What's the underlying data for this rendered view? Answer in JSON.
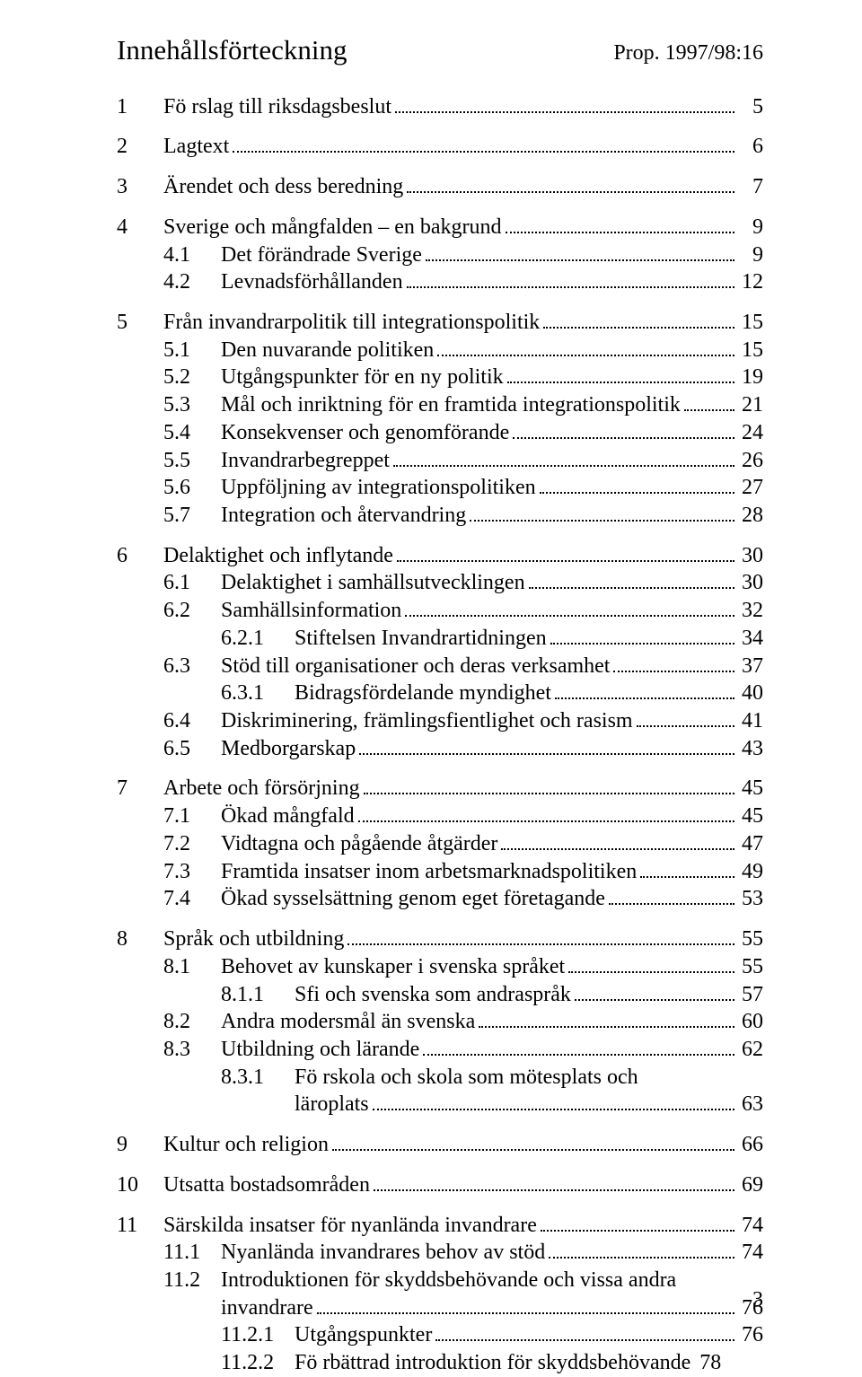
{
  "header": {
    "title": "Innehållsförteckning",
    "prop": "Prop. 1997/98:16"
  },
  "toc": [
    {
      "lvl": 0,
      "num": "1",
      "label": "Fö rslag till riksdagsbeslut",
      "page": "5",
      "gap": true
    },
    {
      "lvl": 0,
      "num": "2",
      "label": "Lagtext",
      "page": "6",
      "gap": true
    },
    {
      "lvl": 0,
      "num": "3",
      "label": "Ärendet och dess beredning",
      "page": "7",
      "gap": true
    },
    {
      "lvl": 0,
      "num": "4",
      "label": "Sverige och mångfalden – en bakgrund",
      "page": "9",
      "gap": true
    },
    {
      "lvl": 1,
      "num": "4.1",
      "label": "Det förändrade Sverige",
      "page": "9"
    },
    {
      "lvl": 1,
      "num": "4.2",
      "label": "Levnadsförhållanden",
      "page": "12"
    },
    {
      "lvl": 0,
      "num": "5",
      "label": "Från invandrarpolitik till integrationspolitik",
      "page": "15",
      "gap": true
    },
    {
      "lvl": 1,
      "num": "5.1",
      "label": "Den nuvarande politiken",
      "page": "15"
    },
    {
      "lvl": 1,
      "num": "5.2",
      "label": "Utgångspunkter för en ny politik",
      "page": "19"
    },
    {
      "lvl": 1,
      "num": "5.3",
      "label": "Mål och inriktning för en framtida integrationspolitik",
      "page": "21"
    },
    {
      "lvl": 1,
      "num": "5.4",
      "label": "Konsekvenser och genomförande",
      "page": "24"
    },
    {
      "lvl": 1,
      "num": "5.5",
      "label": "Invandrarbegreppet",
      "page": "26"
    },
    {
      "lvl": 1,
      "num": "5.6",
      "label": "Uppföljning av integrationspolitiken",
      "page": "27"
    },
    {
      "lvl": 1,
      "num": "5.7",
      "label": "Integration och återvandring",
      "page": "28"
    },
    {
      "lvl": 0,
      "num": "6",
      "label": "Delaktighet och inflytande",
      "page": "30",
      "gap": true
    },
    {
      "lvl": 1,
      "num": "6.1",
      "label": "Delaktighet i samhällsutvecklingen",
      "page": "30"
    },
    {
      "lvl": 1,
      "num": "6.2",
      "label": "Samhällsinformation",
      "page": "32"
    },
    {
      "lvl": 2,
      "num": "6.2.1",
      "label": "Stiftelsen Invandrartidningen",
      "page": "34"
    },
    {
      "lvl": 1,
      "num": "6.3",
      "label": "Stöd till organisationer och deras verksamhet",
      "page": "37"
    },
    {
      "lvl": 2,
      "num": "6.3.1",
      "label": "Bidragsfördelande myndighet",
      "page": "40"
    },
    {
      "lvl": 1,
      "num": "6.4",
      "label": "Diskriminering, främlingsfientlighet och rasism",
      "page": "41"
    },
    {
      "lvl": 1,
      "num": "6.5",
      "label": "Medborgarskap",
      "page": "43"
    },
    {
      "lvl": 0,
      "num": "7",
      "label": "Arbete och försörjning",
      "page": "45",
      "gap": true
    },
    {
      "lvl": 1,
      "num": "7.1",
      "label": "Ökad mångfald",
      "page": "45"
    },
    {
      "lvl": 1,
      "num": "7.2",
      "label": "Vidtagna och pågående åtgärder",
      "page": "47"
    },
    {
      "lvl": 1,
      "num": "7.3",
      "label": "Framtida insatser inom arbetsmarknadspolitiken",
      "page": "49"
    },
    {
      "lvl": 1,
      "num": "7.4",
      "label": "Ökad sysselsättning genom eget företagande",
      "page": "53"
    },
    {
      "lvl": 0,
      "num": "8",
      "label": "Språk och utbildning",
      "page": "55",
      "gap": true
    },
    {
      "lvl": 1,
      "num": "8.1",
      "label": "Behovet av kunskaper i svenska språket",
      "page": "55"
    },
    {
      "lvl": 2,
      "num": "8.1.1",
      "label": "Sfi och svenska som andraspråk",
      "page": "57"
    },
    {
      "lvl": 1,
      "num": "8.2",
      "label": "Andra modersmål än svenska",
      "page": "60"
    },
    {
      "lvl": 1,
      "num": "8.3",
      "label": "Utbildning och lärande",
      "page": "62"
    },
    {
      "lvl": 2,
      "num": "8.3.1",
      "label": "Fö rskola och skola som mötesplats och",
      "cont": "läroplats",
      "page": "63"
    },
    {
      "lvl": 0,
      "num": "9",
      "label": "Kultur och religion",
      "page": "66",
      "gap": true
    },
    {
      "lvl": 0,
      "num": "10",
      "label": "Utsatta bostadsområden",
      "page": "69",
      "gap": true
    },
    {
      "lvl": 0,
      "num": "11",
      "label": "Särskilda insatser för nyanlända invandrare",
      "page": "74",
      "gap": true
    },
    {
      "lvl": 1,
      "num": "11.1",
      "label": "Nyanlända invandrares behov av stöd",
      "page": "74"
    },
    {
      "lvl": 1,
      "num": "11.2",
      "label": "Introduktionen för skyddsbehövande och vissa andra",
      "cont": "invandrare",
      "page": "76"
    },
    {
      "lvl": 2,
      "num": "11.2.1",
      "label": "Utgångspunkter",
      "page": "76"
    },
    {
      "lvl": 2,
      "num": "11.2.2",
      "label": "Fö rbättrad introduktion för skyddsbehövande",
      "page": "78",
      "noleader": true
    }
  ],
  "footer": {
    "pagenum": "3"
  }
}
